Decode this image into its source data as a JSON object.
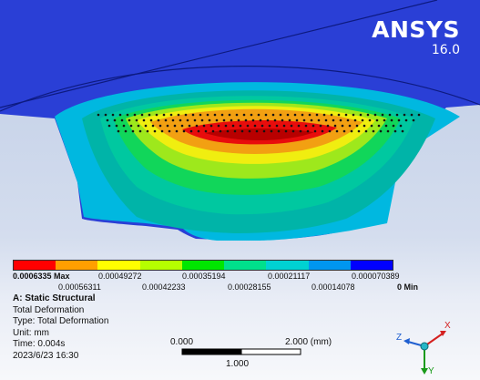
{
  "brand": {
    "name": "ANSYS",
    "version": "16.0"
  },
  "legend": {
    "colors": [
      "#ff0000",
      "#ff9f00",
      "#ffff00",
      "#b6ff00",
      "#00e600",
      "#00e08c",
      "#00d2d2",
      "#0096f0",
      "#0000ff"
    ],
    "labels_top": [
      "0.0006335 Max",
      "0.00049272",
      "0.00035194",
      "0.00021117",
      "0.000070389"
    ],
    "labels_bottom": [
      "0.00056311",
      "0.00042233",
      "0.00028155",
      "0.00014078",
      "0 Min"
    ]
  },
  "info": {
    "title": "A: Static Structural",
    "line1": "Total Deformation",
    "line2": "Type: Total Deformation",
    "line3": "Unit: mm",
    "line4": "Time: 0.004s",
    "line5": "2023/6/23 16:30"
  },
  "scale_bar": {
    "left_label": "0.000",
    "right_label": "2.000 (mm)",
    "mid_label": "1.000"
  },
  "triad": {
    "x_label": "X",
    "y_label": "Y",
    "z_label": "Z"
  },
  "colors": {
    "background_top": "#bfcde6",
    "background_bottom": "#f7f8fb",
    "model_blue": "#2a3fd6"
  }
}
